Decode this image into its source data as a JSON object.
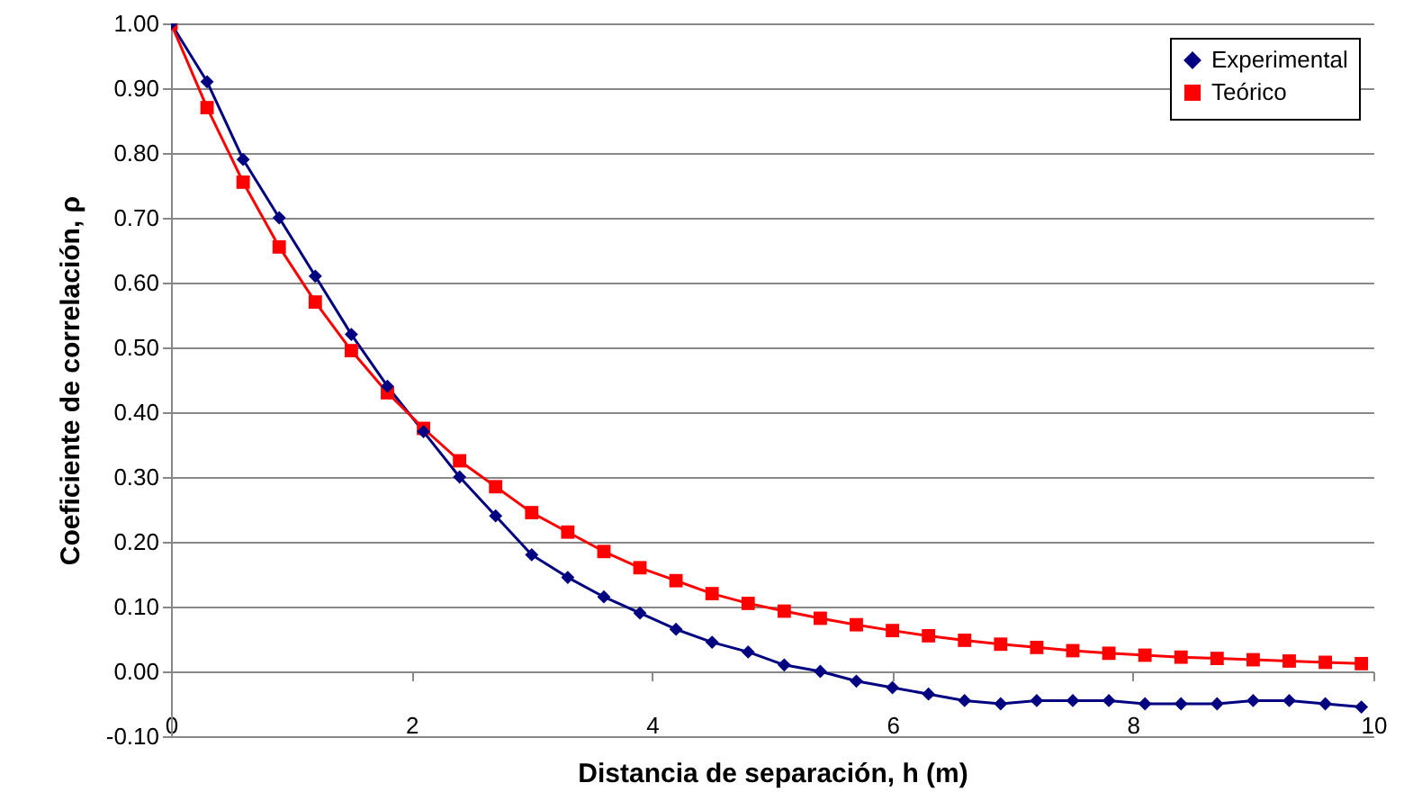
{
  "chart_data": {
    "type": "line",
    "xlabel": "Distancia de separación, h (m)",
    "ylabel": "Coeficiente de correlación, ρ",
    "x": [
      0,
      0.3,
      0.6,
      0.9,
      1.2,
      1.5,
      1.8,
      2.1,
      2.4,
      2.7,
      3.0,
      3.3,
      3.6,
      3.9,
      4.2,
      4.5,
      4.8,
      5.1,
      5.4,
      5.7,
      6.0,
      6.3,
      6.6,
      6.9,
      7.2,
      7.5,
      7.8,
      8.1,
      8.4,
      8.7,
      9.0,
      9.3,
      9.6,
      9.9
    ],
    "series": [
      {
        "name": "Experimental",
        "color": "#000080",
        "marker": "diamond",
        "values": [
          1.0,
          0.91,
          0.79,
          0.7,
          0.61,
          0.52,
          0.44,
          0.37,
          0.3,
          0.24,
          0.18,
          0.145,
          0.115,
          0.09,
          0.065,
          0.045,
          0.03,
          0.01,
          0.0,
          -0.015,
          -0.025,
          -0.035,
          -0.045,
          -0.05,
          -0.045,
          -0.045,
          -0.045,
          -0.05,
          -0.05,
          -0.05,
          -0.045,
          -0.045,
          -0.05,
          -0.055
        ]
      },
      {
        "name": "Teórico",
        "color": "#ff0000",
        "marker": "square",
        "values": [
          1.0,
          0.87,
          0.755,
          0.655,
          0.57,
          0.495,
          0.43,
          0.375,
          0.325,
          0.285,
          0.245,
          0.215,
          0.185,
          0.16,
          0.14,
          0.12,
          0.105,
          0.093,
          0.082,
          0.072,
          0.063,
          0.055,
          0.048,
          0.042,
          0.037,
          0.032,
          0.028,
          0.025,
          0.022,
          0.02,
          0.018,
          0.016,
          0.014,
          0.012
        ]
      }
    ],
    "xlim": [
      0,
      10
    ],
    "xticks": [
      0,
      2,
      4,
      6,
      8,
      10
    ],
    "ylim": [
      -0.1,
      1.0
    ],
    "yticks": [
      {
        "value": -0.1,
        "label": "-0.10"
      },
      {
        "value": 0,
        "label": "0.00"
      },
      {
        "value": 0.1,
        "label": "0.10"
      },
      {
        "value": 0.2,
        "label": "0.20"
      },
      {
        "value": 0.3,
        "label": "0.30"
      },
      {
        "value": 0.4,
        "label": "0.40"
      },
      {
        "value": 0.5,
        "label": "0.50"
      },
      {
        "value": 0.6,
        "label": "0.60"
      },
      {
        "value": 0.7,
        "label": "0.70"
      },
      {
        "value": 0.8,
        "label": "0.80"
      },
      {
        "value": 0.9,
        "label": "0.90"
      },
      {
        "value": 1.0,
        "label": "1.00"
      }
    ],
    "grid": "y",
    "legend": "top right",
    "line_style": "solid"
  }
}
